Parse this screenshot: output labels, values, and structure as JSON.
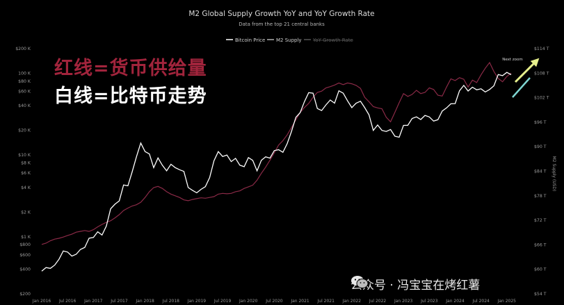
{
  "title": "M2 Global Supply Growth YoY and YoY Growth Rate",
  "subtitle": "Data from the top 21 central banks",
  "legend": {
    "btc": "Bitcoin Price",
    "m2": "M2 Supply",
    "growth": "YoY Growth Rate"
  },
  "overlay": {
    "line1": "红线=货币供给量",
    "line2": "白线=比特币走势"
  },
  "annotation": "Next zoom",
  "right_axis_title": "M2 Supply (USD)",
  "watermark": "公众号 · 冯宝宝在烤红薯",
  "colors": {
    "background": "#000000",
    "btc": "#ffffff",
    "m2": "#8b2a47",
    "overlay_red": "#a1243c",
    "arrow_yellow": "#e6ef8c",
    "arrow_teal": "#7fd6d2"
  },
  "chart_data": {
    "type": "line",
    "title": "M2 Global Supply Growth YoY and YoY Growth Rate",
    "subtitle": "Data from the top 21 central banks",
    "x_ticks": [
      "Jan 2016",
      "Jul 2016",
      "Jan 2017",
      "Jul 2017",
      "Jan 2018",
      "Jul 2018",
      "Jan 2019",
      "Jul 2019",
      "Jan 2020",
      "Jul 2020",
      "Jan 2021",
      "Jul 2021",
      "Jan 2022",
      "Jul 2022",
      "Jan 2023",
      "Jul 2023",
      "Jan 2024",
      "Jul 2024",
      "Jan 2025"
    ],
    "left_axis": {
      "scale": "log",
      "ticks": [
        {
          "value": 200000,
          "label": "$200 K"
        },
        {
          "value": 100000,
          "label": "100 K"
        },
        {
          "value": 80000,
          "label": "$80 K"
        },
        {
          "value": 60000,
          "label": "$60 K"
        },
        {
          "value": 40000,
          "label": "$40 K"
        },
        {
          "value": 20000,
          "label": "$20 K"
        },
        {
          "value": 10000,
          "label": "$10 K"
        },
        {
          "value": 8000,
          "label": "$8 K"
        },
        {
          "value": 6000,
          "label": "$6 K"
        },
        {
          "value": 4000,
          "label": "$4 K"
        },
        {
          "value": 2000,
          "label": "$2 K"
        },
        {
          "value": 1000,
          "label": "$1 K"
        },
        {
          "value": 800,
          "label": "$800"
        },
        {
          "value": 600,
          "label": "$600"
        },
        {
          "value": 400,
          "label": "$400"
        },
        {
          "value": 200,
          "label": "$200"
        }
      ]
    },
    "right_axis": {
      "title": "M2 Supply (USD)",
      "ticks": [
        {
          "value": 114,
          "label": "$114 T"
        },
        {
          "value": 108,
          "label": "$108 T"
        },
        {
          "value": 102,
          "label": "$102 T"
        },
        {
          "value": 96,
          "label": "$96 T"
        },
        {
          "value": 90,
          "label": "$90 T"
        },
        {
          "value": 84,
          "label": "$84 T"
        },
        {
          "value": 78,
          "label": "$78 T"
        },
        {
          "value": 72,
          "label": "$72 T"
        },
        {
          "value": 66,
          "label": "$66 T"
        },
        {
          "value": 60,
          "label": "$60 T"
        },
        {
          "value": 54,
          "label": "$54 T"
        }
      ]
    },
    "grid": false,
    "legend_position": "top-center",
    "series": [
      {
        "name": "Bitcoin Price",
        "axis": "left",
        "x": [
          "2016-01",
          "2016-02",
          "2016-03",
          "2016-04",
          "2016-05",
          "2016-06",
          "2016-07",
          "2016-08",
          "2016-09",
          "2016-10",
          "2016-11",
          "2016-12",
          "2017-01",
          "2017-02",
          "2017-03",
          "2017-04",
          "2017-05",
          "2017-06",
          "2017-07",
          "2017-08",
          "2017-09",
          "2017-10",
          "2017-11",
          "2017-12",
          "2018-01",
          "2018-02",
          "2018-03",
          "2018-04",
          "2018-05",
          "2018-06",
          "2018-07",
          "2018-08",
          "2018-09",
          "2018-10",
          "2018-11",
          "2018-12",
          "2019-01",
          "2019-02",
          "2019-03",
          "2019-04",
          "2019-05",
          "2019-06",
          "2019-07",
          "2019-08",
          "2019-09",
          "2019-10",
          "2019-11",
          "2019-12",
          "2020-01",
          "2020-02",
          "2020-03",
          "2020-04",
          "2020-05",
          "2020-06",
          "2020-07",
          "2020-08",
          "2020-09",
          "2020-10",
          "2020-11",
          "2020-12",
          "2021-01",
          "2021-02",
          "2021-03",
          "2021-04",
          "2021-05",
          "2021-06",
          "2021-07",
          "2021-08",
          "2021-09",
          "2021-10",
          "2021-11",
          "2021-12",
          "2022-01",
          "2022-02",
          "2022-03",
          "2022-04",
          "2022-05",
          "2022-06",
          "2022-07",
          "2022-08",
          "2022-09",
          "2022-10",
          "2022-11",
          "2022-12",
          "2023-01",
          "2023-02",
          "2023-03",
          "2023-04",
          "2023-05",
          "2023-06",
          "2023-07",
          "2023-08",
          "2023-09",
          "2023-10",
          "2023-11",
          "2023-12",
          "2024-01",
          "2024-02",
          "2024-03",
          "2024-04",
          "2024-05",
          "2024-06",
          "2024-07",
          "2024-08",
          "2024-09",
          "2024-10",
          "2024-11",
          "2024-12",
          "2025-01",
          "2025-02"
        ],
        "values": [
          380,
          420,
          410,
          450,
          530,
          670,
          650,
          580,
          610,
          700,
          740,
          960,
          980,
          1150,
          1050,
          1350,
          2200,
          2500,
          2750,
          4300,
          4200,
          6200,
          9500,
          14000,
          11000,
          10300,
          7000,
          9200,
          7500,
          6400,
          7700,
          7000,
          6600,
          6300,
          4000,
          3700,
          3450,
          3800,
          4100,
          5300,
          8500,
          11000,
          9600,
          10000,
          8300,
          9100,
          7500,
          7200,
          9300,
          8600,
          6400,
          8600,
          9500,
          9150,
          11300,
          11600,
          10800,
          13800,
          19500,
          28900,
          33000,
          45000,
          58000,
          57000,
          37000,
          35000,
          41000,
          47000,
          43000,
          61000,
          57000,
          46000,
          38000,
          43000,
          45500,
          38000,
          31000,
          20000,
          23300,
          20000,
          19400,
          20500,
          17000,
          16500,
          23000,
          23100,
          28000,
          29300,
          27200,
          30500,
          29200,
          26000,
          27000,
          34500,
          37700,
          42300,
          42500,
          61000,
          71000,
          60600,
          67500,
          62700,
          64600,
          59000,
          63300,
          70200,
          96400,
          93400,
          102400,
          96000
        ]
      },
      {
        "name": "M2 Supply",
        "axis": "right",
        "x": [
          "2016-01",
          "2016-02",
          "2016-03",
          "2016-04",
          "2016-05",
          "2016-06",
          "2016-07",
          "2016-08",
          "2016-09",
          "2016-10",
          "2016-11",
          "2016-12",
          "2017-01",
          "2017-02",
          "2017-03",
          "2017-04",
          "2017-05",
          "2017-06",
          "2017-07",
          "2017-08",
          "2017-09",
          "2017-10",
          "2017-11",
          "2017-12",
          "2018-01",
          "2018-02",
          "2018-03",
          "2018-04",
          "2018-05",
          "2018-06",
          "2018-07",
          "2018-08",
          "2018-09",
          "2018-10",
          "2018-11",
          "2018-12",
          "2019-01",
          "2019-02",
          "2019-03",
          "2019-04",
          "2019-05",
          "2019-06",
          "2019-07",
          "2019-08",
          "2019-09",
          "2019-10",
          "2019-11",
          "2019-12",
          "2020-01",
          "2020-02",
          "2020-03",
          "2020-04",
          "2020-05",
          "2020-06",
          "2020-07",
          "2020-08",
          "2020-09",
          "2020-10",
          "2020-11",
          "2020-12",
          "2021-01",
          "2021-02",
          "2021-03",
          "2021-04",
          "2021-05",
          "2021-06",
          "2021-07",
          "2021-08",
          "2021-09",
          "2021-10",
          "2021-11",
          "2021-12",
          "2022-01",
          "2022-02",
          "2022-03",
          "2022-04",
          "2022-05",
          "2022-06",
          "2022-07",
          "2022-08",
          "2022-09",
          "2022-10",
          "2022-11",
          "2022-12",
          "2023-01",
          "2023-02",
          "2023-03",
          "2023-04",
          "2023-05",
          "2023-06",
          "2023-07",
          "2023-08",
          "2023-09",
          "2023-10",
          "2023-11",
          "2023-12",
          "2024-01",
          "2024-02",
          "2024-03",
          "2024-04",
          "2024-05",
          "2024-06",
          "2024-07",
          "2024-08",
          "2024-09",
          "2024-10",
          "2024-11",
          "2024-12",
          "2025-01",
          "2025-02"
        ],
        "values": [
          66.1,
          66.4,
          67.0,
          67.4,
          67.6,
          67.9,
          68.3,
          68.6,
          69.1,
          69.3,
          69.5,
          69.3,
          69.7,
          70.4,
          71.0,
          71.5,
          71.9,
          72.6,
          73.4,
          74.4,
          75.0,
          75.5,
          75.8,
          76.4,
          77.6,
          79.0,
          80.0,
          80.3,
          79.8,
          79.0,
          78.4,
          78.0,
          77.6,
          77.0,
          76.8,
          77.1,
          77.3,
          77.5,
          77.4,
          77.6,
          77.8,
          78.4,
          78.6,
          78.5,
          78.6,
          79.0,
          79.2,
          79.8,
          80.2,
          80.6,
          81.8,
          83.5,
          85.0,
          86.7,
          88.5,
          90.4,
          91.5,
          92.9,
          94.7,
          96.6,
          98.4,
          99.6,
          100.6,
          102.1,
          103.3,
          103.6,
          104.4,
          104.7,
          105.1,
          105.6,
          105.2,
          105.6,
          105.4,
          105.0,
          104.3,
          102.1,
          101.0,
          99.8,
          99.5,
          99.3,
          97.2,
          96.1,
          98.4,
          100.8,
          103.0,
          102.3,
          102.8,
          103.8,
          103.0,
          103.3,
          104.4,
          104.0,
          102.6,
          102.4,
          104.6,
          106.6,
          106.2,
          106.9,
          106.5,
          104.6,
          106.3,
          105.7,
          107.6,
          109.2,
          110.6,
          108.4,
          106.7,
          105.9,
          107.2,
          108.0
        ]
      }
    ]
  }
}
